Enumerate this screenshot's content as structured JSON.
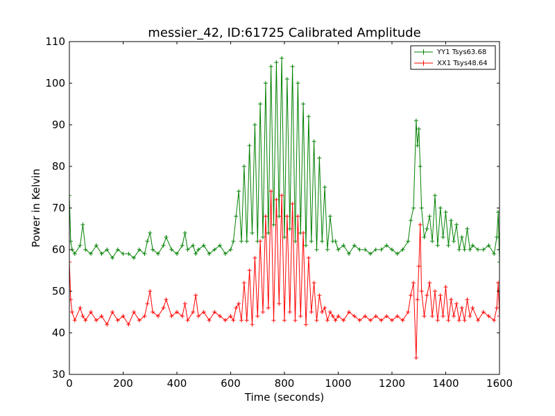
{
  "chart_data": {
    "type": "line",
    "title": "messier_42, ID:61725 Calibrated Amplitude",
    "xlabel": "Time (seconds)",
    "ylabel": "Power in Kelvin",
    "xlim": [
      0,
      1600
    ],
    "ylim": [
      30,
      110
    ],
    "xticks": [
      0,
      200,
      400,
      600,
      800,
      1000,
      1200,
      1400,
      1600
    ],
    "yticks": [
      30,
      40,
      50,
      60,
      70,
      80,
      90,
      100,
      110
    ],
    "grid": false,
    "legend_position": "top-right",
    "marker": "+",
    "series": [
      {
        "name": "YY1 Tsys63.68",
        "color": "#008000",
        "x": [
          0,
          5,
          10,
          20,
          40,
          50,
          60,
          80,
          100,
          120,
          140,
          160,
          180,
          200,
          220,
          240,
          260,
          280,
          290,
          300,
          310,
          330,
          350,
          360,
          380,
          400,
          420,
          430,
          440,
          460,
          470,
          480,
          500,
          520,
          540,
          560,
          580,
          600,
          610,
          620,
          630,
          640,
          650,
          660,
          670,
          680,
          690,
          700,
          710,
          720,
          730,
          740,
          750,
          760,
          770,
          780,
          790,
          800,
          810,
          820,
          830,
          840,
          850,
          860,
          870,
          880,
          890,
          900,
          910,
          920,
          930,
          940,
          950,
          960,
          970,
          980,
          990,
          1000,
          1020,
          1040,
          1060,
          1080,
          1100,
          1120,
          1140,
          1160,
          1180,
          1200,
          1220,
          1240,
          1260,
          1270,
          1280,
          1290,
          1295,
          1300,
          1305,
          1310,
          1320,
          1330,
          1340,
          1350,
          1360,
          1370,
          1380,
          1390,
          1400,
          1410,
          1420,
          1430,
          1440,
          1450,
          1460,
          1470,
          1480,
          1490,
          1500,
          1520,
          1540,
          1560,
          1580,
          1590,
          1595,
          1600
        ],
        "y": [
          73,
          62,
          60,
          59,
          61,
          66,
          60,
          59,
          61,
          59,
          60,
          58,
          60,
          59,
          59,
          58,
          60,
          59,
          62,
          64,
          60,
          59,
          61,
          63,
          60,
          59,
          61,
          64,
          60,
          61,
          59,
          60,
          61,
          59,
          60,
          61,
          59,
          60,
          62,
          68,
          74,
          62,
          80,
          62,
          85,
          64,
          90,
          62,
          95,
          63,
          100,
          64,
          104,
          66,
          105,
          68,
          106,
          63,
          101,
          65,
          104,
          62,
          100,
          64,
          95,
          61,
          92,
          62,
          86,
          60,
          82,
          62,
          75,
          60,
          68,
          62,
          62,
          60,
          61,
          59,
          61,
          60,
          60,
          59,
          60,
          60,
          61,
          60,
          59,
          60,
          62,
          67,
          70,
          91,
          85,
          89,
          80,
          70,
          63,
          65,
          68,
          62,
          73,
          61,
          70,
          63,
          69,
          61,
          67,
          62,
          66,
          60,
          63,
          60,
          65,
          60,
          61,
          60,
          60,
          61,
          59,
          63,
          69,
          57
        ]
      },
      {
        "name": "XX1 Tsys48.64",
        "color": "#ff0000",
        "x": [
          0,
          5,
          10,
          20,
          40,
          50,
          60,
          80,
          100,
          120,
          140,
          160,
          180,
          200,
          220,
          240,
          260,
          280,
          290,
          300,
          310,
          330,
          350,
          360,
          380,
          400,
          420,
          430,
          440,
          460,
          470,
          480,
          500,
          520,
          540,
          560,
          580,
          600,
          610,
          620,
          630,
          640,
          650,
          660,
          670,
          680,
          690,
          700,
          710,
          720,
          730,
          740,
          750,
          760,
          770,
          780,
          790,
          800,
          810,
          820,
          830,
          840,
          850,
          860,
          870,
          880,
          890,
          900,
          910,
          920,
          930,
          940,
          950,
          960,
          970,
          980,
          990,
          1000,
          1020,
          1040,
          1060,
          1080,
          1100,
          1120,
          1140,
          1160,
          1180,
          1200,
          1220,
          1240,
          1260,
          1270,
          1280,
          1290,
          1295,
          1300,
          1305,
          1310,
          1320,
          1330,
          1340,
          1350,
          1360,
          1370,
          1380,
          1390,
          1400,
          1410,
          1420,
          1430,
          1440,
          1450,
          1460,
          1470,
          1480,
          1490,
          1500,
          1520,
          1540,
          1560,
          1580,
          1590,
          1595,
          1600
        ],
        "y": [
          57,
          48,
          45,
          43,
          46,
          44,
          43,
          45,
          43,
          44,
          42,
          45,
          43,
          44,
          42,
          45,
          43,
          44,
          47,
          50,
          45,
          44,
          46,
          48,
          44,
          45,
          44,
          47,
          43,
          45,
          49,
          44,
          45,
          43,
          45,
          44,
          43,
          44,
          43,
          46,
          47,
          43,
          52,
          43,
          55,
          42,
          58,
          44,
          62,
          45,
          68,
          46,
          74,
          43,
          72,
          47,
          73,
          43,
          68,
          45,
          71,
          43,
          68,
          44,
          64,
          42,
          58,
          45,
          52,
          43,
          49,
          45,
          46,
          43,
          45,
          44,
          43,
          44,
          43,
          45,
          44,
          43,
          44,
          43,
          44,
          43,
          44,
          43,
          44,
          43,
          45,
          49,
          52,
          34,
          48,
          56,
          66,
          50,
          44,
          49,
          52,
          44,
          50,
          43,
          49,
          44,
          51,
          43,
          48,
          44,
          47,
          43,
          46,
          43,
          48,
          44,
          46,
          43,
          45,
          44,
          43,
          46,
          52,
          44
        ]
      }
    ]
  }
}
